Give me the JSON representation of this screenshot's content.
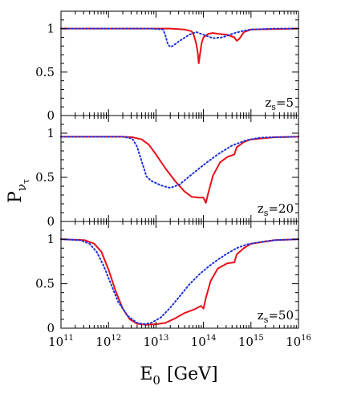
{
  "chart_data": {
    "type": "line",
    "xscale": "log",
    "xlim_exponent": [
      11,
      16
    ],
    "x_tick_base": "10",
    "x_tick_exponents": [
      "11",
      "12",
      "13",
      "14",
      "15",
      "16"
    ],
    "xlabel_main": "E",
    "xlabel_sub": "0",
    "xlabel_unit": "[GeV]",
    "ylabel_main": "P",
    "ylabel_sub": "ν",
    "ylabel_subsub": "τ",
    "ylim": [
      0,
      1.2
    ],
    "y_tick_labels": [
      "1",
      "0.5",
      "0"
    ],
    "y_tick_values": [
      1,
      0.5,
      0
    ],
    "series_styles": [
      {
        "color": "#e8101a",
        "dash": "solid",
        "width": 2
      },
      {
        "color": "#1a2fe0",
        "dash": "dotted",
        "width": 2
      }
    ],
    "panels": [
      {
        "annotation_main": "z",
        "annotation_sub": "s",
        "annotation_value": "=5",
        "series": [
          {
            "points": [
              [
                11,
                1.0
              ],
              [
                12.5,
                1.0
              ],
              [
                13.3,
                1.0
              ],
              [
                13.6,
                0.99
              ],
              [
                13.75,
                0.97
              ],
              [
                13.8,
                0.92
              ],
              [
                13.85,
                0.82
              ],
              [
                13.88,
                0.72
              ],
              [
                13.9,
                0.6
              ],
              [
                13.92,
                0.68
              ],
              [
                13.96,
                0.83
              ],
              [
                14.0,
                0.9
              ],
              [
                14.1,
                0.94
              ],
              [
                14.2,
                0.95
              ],
              [
                14.3,
                0.94
              ],
              [
                14.5,
                0.93
              ],
              [
                14.65,
                0.9
              ],
              [
                14.7,
                0.86
              ],
              [
                14.75,
                0.88
              ],
              [
                14.85,
                0.96
              ],
              [
                15.0,
                0.99
              ],
              [
                16,
                1.0
              ]
            ]
          },
          {
            "points": [
              [
                11,
                1.0
              ],
              [
                12.9,
                1.0
              ],
              [
                13.15,
                0.99
              ],
              [
                13.2,
                0.92
              ],
              [
                13.25,
                0.82
              ],
              [
                13.3,
                0.79
              ],
              [
                13.35,
                0.8
              ],
              [
                13.5,
                0.86
              ],
              [
                13.7,
                0.93
              ],
              [
                13.85,
                0.96
              ],
              [
                14.0,
                0.93
              ],
              [
                14.2,
                0.89
              ],
              [
                14.4,
                0.9
              ],
              [
                14.6,
                0.94
              ],
              [
                14.8,
                0.97
              ],
              [
                15.0,
                0.99
              ],
              [
                15.5,
                1.0
              ],
              [
                16,
                1.0
              ]
            ]
          }
        ]
      },
      {
        "annotation_main": "z",
        "annotation_sub": "s",
        "annotation_value": "=20",
        "series": [
          {
            "points": [
              [
                11,
                0.96
              ],
              [
                12.3,
                0.96
              ],
              [
                12.5,
                0.955
              ],
              [
                12.7,
                0.93
              ],
              [
                12.85,
                0.87
              ],
              [
                13.0,
                0.76
              ],
              [
                13.2,
                0.6
              ],
              [
                13.4,
                0.46
              ],
              [
                13.6,
                0.34
              ],
              [
                13.75,
                0.28
              ],
              [
                13.9,
                0.27
              ],
              [
                14.0,
                0.27
              ],
              [
                14.05,
                0.21
              ],
              [
                14.1,
                0.32
              ],
              [
                14.2,
                0.52
              ],
              [
                14.35,
                0.67
              ],
              [
                14.5,
                0.73
              ],
              [
                14.65,
                0.76
              ],
              [
                14.7,
                0.84
              ],
              [
                14.85,
                0.9
              ],
              [
                15.0,
                0.93
              ],
              [
                15.5,
                0.955
              ],
              [
                16,
                0.96
              ]
            ]
          },
          {
            "points": [
              [
                11,
                0.96
              ],
              [
                12.3,
                0.96
              ],
              [
                12.5,
                0.94
              ],
              [
                12.6,
                0.85
              ],
              [
                12.7,
                0.68
              ],
              [
                12.8,
                0.51
              ],
              [
                12.9,
                0.46
              ],
              [
                13.1,
                0.41
              ],
              [
                13.3,
                0.38
              ],
              [
                13.5,
                0.42
              ],
              [
                13.7,
                0.51
              ],
              [
                14.0,
                0.64
              ],
              [
                14.3,
                0.76
              ],
              [
                14.6,
                0.86
              ],
              [
                14.9,
                0.92
              ],
              [
                15.2,
                0.95
              ],
              [
                15.5,
                0.955
              ],
              [
                16,
                0.96
              ]
            ]
          }
        ]
      },
      {
        "annotation_main": "z",
        "annotation_sub": "s",
        "annotation_value": "=50",
        "series": [
          {
            "points": [
              [
                11,
                1.0
              ],
              [
                11.5,
                0.99
              ],
              [
                11.7,
                0.95
              ],
              [
                11.85,
                0.86
              ],
              [
                12.0,
                0.66
              ],
              [
                12.15,
                0.42
              ],
              [
                12.3,
                0.22
              ],
              [
                12.45,
                0.1
              ],
              [
                12.6,
                0.05
              ],
              [
                12.8,
                0.04
              ],
              [
                13.0,
                0.045
              ],
              [
                13.2,
                0.06
              ],
              [
                13.4,
                0.11
              ],
              [
                13.6,
                0.17
              ],
              [
                13.8,
                0.21
              ],
              [
                13.95,
                0.25
              ],
              [
                14.0,
                0.22
              ],
              [
                14.05,
                0.34
              ],
              [
                14.15,
                0.53
              ],
              [
                14.3,
                0.67
              ],
              [
                14.5,
                0.73
              ],
              [
                14.65,
                0.74
              ],
              [
                14.7,
                0.83
              ],
              [
                14.85,
                0.9
              ],
              [
                15.0,
                0.95
              ],
              [
                15.5,
                0.99
              ],
              [
                16,
                1.0
              ]
            ]
          },
          {
            "points": [
              [
                11,
                1.0
              ],
              [
                11.4,
                0.99
              ],
              [
                11.6,
                0.95
              ],
              [
                11.75,
                0.86
              ],
              [
                11.9,
                0.7
              ],
              [
                12.05,
                0.5
              ],
              [
                12.2,
                0.3
              ],
              [
                12.4,
                0.14
              ],
              [
                12.6,
                0.06
              ],
              [
                12.75,
                0.045
              ],
              [
                12.9,
                0.06
              ],
              [
                13.1,
                0.12
              ],
              [
                13.3,
                0.23
              ],
              [
                13.5,
                0.36
              ],
              [
                13.7,
                0.49
              ],
              [
                13.9,
                0.6
              ],
              [
                14.1,
                0.69
              ],
              [
                14.3,
                0.77
              ],
              [
                14.5,
                0.84
              ],
              [
                14.7,
                0.9
              ],
              [
                14.9,
                0.94
              ],
              [
                15.2,
                0.97
              ],
              [
                15.5,
                0.99
              ],
              [
                16,
                1.0
              ]
            ]
          }
        ]
      }
    ]
  }
}
